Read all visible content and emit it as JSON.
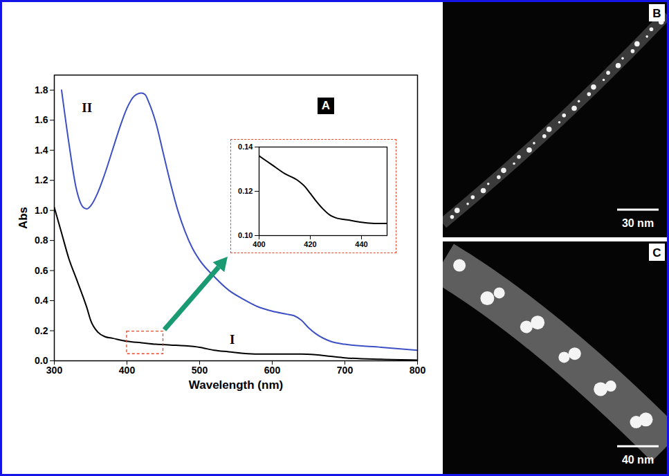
{
  "chart_data": [
    {
      "type": "line",
      "panel_label": "A",
      "x_label": "Wavelength (nm)",
      "y_label": "Abs",
      "xlim": [
        300,
        800
      ],
      "xticks": [
        300,
        400,
        500,
        600,
        700,
        800
      ],
      "ylim": [
        0,
        1.9
      ],
      "yticks": [
        {
          "value": 0,
          "label": "0.0"
        },
        0.2,
        0.4,
        0.6,
        0.8,
        {
          "value": 1,
          "label": "1.0"
        },
        1.2,
        1.4,
        1.6,
        1.8
      ],
      "series": [
        {
          "name": "I",
          "color": "#000000",
          "x": [
            300,
            310,
            320,
            330,
            340,
            345,
            350,
            360,
            370,
            380,
            400,
            420,
            440,
            460,
            480,
            500,
            520,
            540,
            560,
            580,
            600,
            620,
            640,
            660,
            680,
            700,
            750,
            800
          ],
          "values": [
            1.02,
            0.85,
            0.68,
            0.55,
            0.42,
            0.35,
            0.27,
            0.19,
            0.16,
            0.15,
            0.13,
            0.12,
            0.11,
            0.105,
            0.1,
            0.09,
            0.07,
            0.06,
            0.05,
            0.045,
            0.045,
            0.045,
            0.045,
            0.04,
            0.03,
            0.02,
            0.01,
            0.005
          ]
        },
        {
          "name": "II",
          "color": "#3d4fc4",
          "x": [
            310,
            320,
            330,
            340,
            345,
            350,
            360,
            370,
            380,
            390,
            400,
            410,
            420,
            425,
            430,
            440,
            450,
            460,
            470,
            480,
            490,
            500,
            520,
            540,
            560,
            580,
            600,
            620,
            630,
            640,
            650,
            660,
            680,
            700,
            750,
            800
          ],
          "values": [
            1.8,
            1.45,
            1.15,
            1.02,
            1.01,
            1.03,
            1.12,
            1.25,
            1.4,
            1.55,
            1.68,
            1.76,
            1.78,
            1.77,
            1.72,
            1.58,
            1.38,
            1.18,
            1.0,
            0.86,
            0.75,
            0.67,
            0.56,
            0.47,
            0.41,
            0.36,
            0.33,
            0.31,
            0.3,
            0.27,
            0.22,
            0.18,
            0.13,
            0.11,
            0.09,
            0.07
          ]
        }
      ],
      "annotations": [
        {
          "text": "II",
          "x": 345,
          "y": 1.68
        },
        {
          "text": "I",
          "x": 545,
          "y": 0.14
        }
      ]
    },
    {
      "type": "line",
      "xlim": [
        400,
        450
      ],
      "xticks": [
        400,
        420,
        440
      ],
      "ylim": [
        0.1,
        0.14
      ],
      "yticks": [
        {
          "value": 0.1,
          "label": "0.10"
        },
        0.12,
        0.14
      ],
      "series": [
        {
          "name": "I",
          "color": "#000000",
          "x": [
            400,
            405,
            410,
            415,
            418,
            420,
            422,
            425,
            428,
            430,
            435,
            440,
            445,
            450
          ],
          "values": [
            0.136,
            0.132,
            0.128,
            0.125,
            0.122,
            0.119,
            0.116,
            0.112,
            0.109,
            0.108,
            0.107,
            0.106,
            0.1055,
            0.1055
          ]
        }
      ]
    }
  ],
  "panels": [
    {
      "letter": "B",
      "scale_bar": "30 nm"
    },
    {
      "letter": "C",
      "scale_bar": "40 nm"
    }
  ]
}
